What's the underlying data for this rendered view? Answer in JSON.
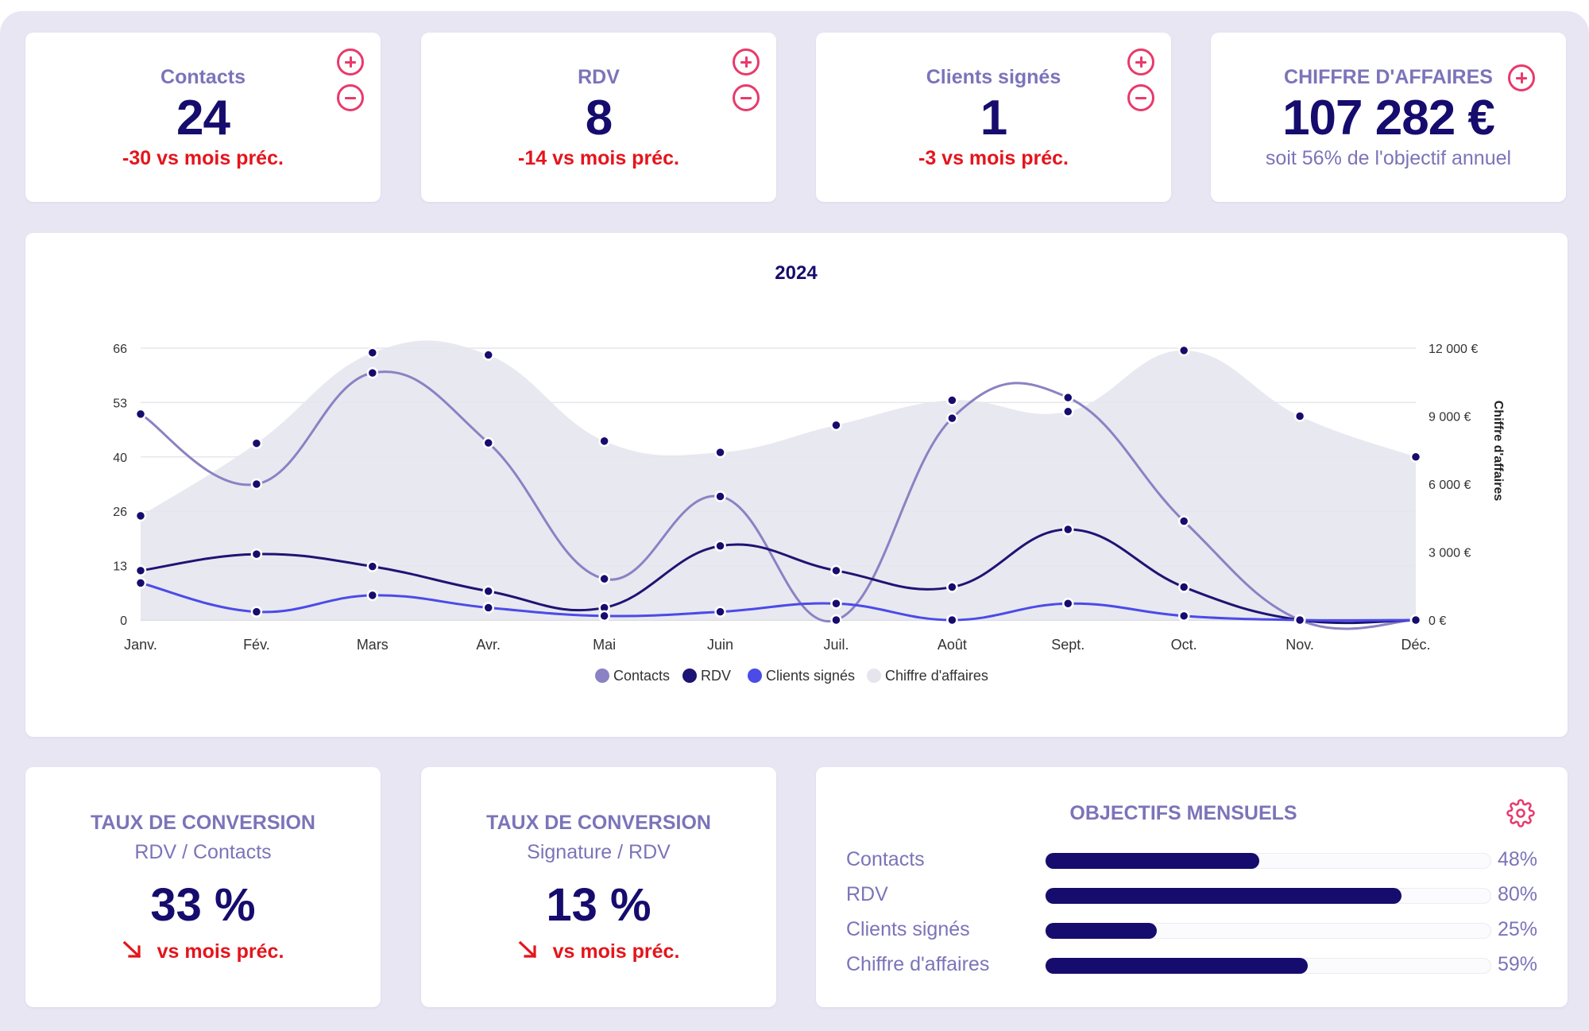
{
  "kpis": [
    {
      "title": "Contacts",
      "value": "24",
      "delta": "-30 vs mois préc."
    },
    {
      "title": "RDV",
      "value": "8",
      "delta": "-14 vs mois préc."
    },
    {
      "title": "Clients signés",
      "value": "1",
      "delta": "-3 vs mois préc."
    },
    {
      "title": "CHIFFRE D'AFFAIRES",
      "value": "107 282 €",
      "sub": "soit 56% de l'objectif annuel"
    }
  ],
  "chart_data": {
    "type": "line",
    "title": "2024",
    "categories": [
      "Janv.",
      "Fév.",
      "Mars",
      "Avr.",
      "Mai",
      "Juin",
      "Juil.",
      "Août",
      "Sept.",
      "Oct.",
      "Nov.",
      "Déc."
    ],
    "y_left": {
      "min": 0,
      "max": 66,
      "ticks": [
        "0",
        "13",
        "26",
        "40",
        "53",
        "66"
      ]
    },
    "y_right": {
      "label": "Chiffre d'affaires",
      "min": 0,
      "max": 12000,
      "ticks": [
        "0 €",
        "3 000 €",
        "6 000 €",
        "9 000 €",
        "12 000 €"
      ]
    },
    "series": [
      {
        "name": "Contacts",
        "axis": "left",
        "color": "#8a82c4",
        "values": [
          50,
          33,
          60,
          43,
          10,
          30,
          0,
          49,
          54,
          24,
          0,
          0
        ]
      },
      {
        "name": "RDV",
        "axis": "left",
        "color": "#1d1473",
        "values": [
          12,
          16,
          13,
          7,
          3,
          18,
          12,
          8,
          22,
          8,
          0,
          0
        ]
      },
      {
        "name": "Clients signés",
        "axis": "left",
        "color": "#4b4be8",
        "values": [
          9,
          2,
          6,
          3,
          1,
          2,
          4,
          0,
          4,
          1,
          0,
          0
        ]
      },
      {
        "name": "Chiffre d'affaires",
        "axis": "right",
        "type": "area",
        "color": "#e6e5ee",
        "values": [
          4600,
          7800,
          11800,
          11700,
          7900,
          7400,
          8600,
          9700,
          9200,
          11900,
          9000,
          7200
        ]
      }
    ],
    "legend": [
      "Contacts",
      "RDV",
      "Clients signés",
      "Chiffre d'affaires"
    ],
    "legend_position": "bottom"
  },
  "conversions": [
    {
      "title": "TAUX DE CONVERSION",
      "subtitle": "RDV / Contacts",
      "value": "33 %",
      "delta": "vs mois préc."
    },
    {
      "title": "TAUX DE CONVERSION",
      "subtitle": "Signature / RDV",
      "value": "13 %",
      "delta": "vs mois préc."
    }
  ],
  "goals": {
    "title": "OBJECTIFS MENSUELS",
    "items": [
      {
        "label": "Contacts",
        "percent": "48%",
        "fraction": 0.48
      },
      {
        "label": "RDV",
        "percent": "80%",
        "fraction": 0.8
      },
      {
        "label": "Clients signés",
        "percent": "25%",
        "fraction": 0.25
      },
      {
        "label": "Chiffre d'affaires",
        "percent": "59%",
        "fraction": 0.59
      }
    ]
  },
  "colors": {
    "accent": "#e83a6b",
    "primary": "#160c6e",
    "muted": "#7b74b9",
    "negative": "#e5141c"
  }
}
